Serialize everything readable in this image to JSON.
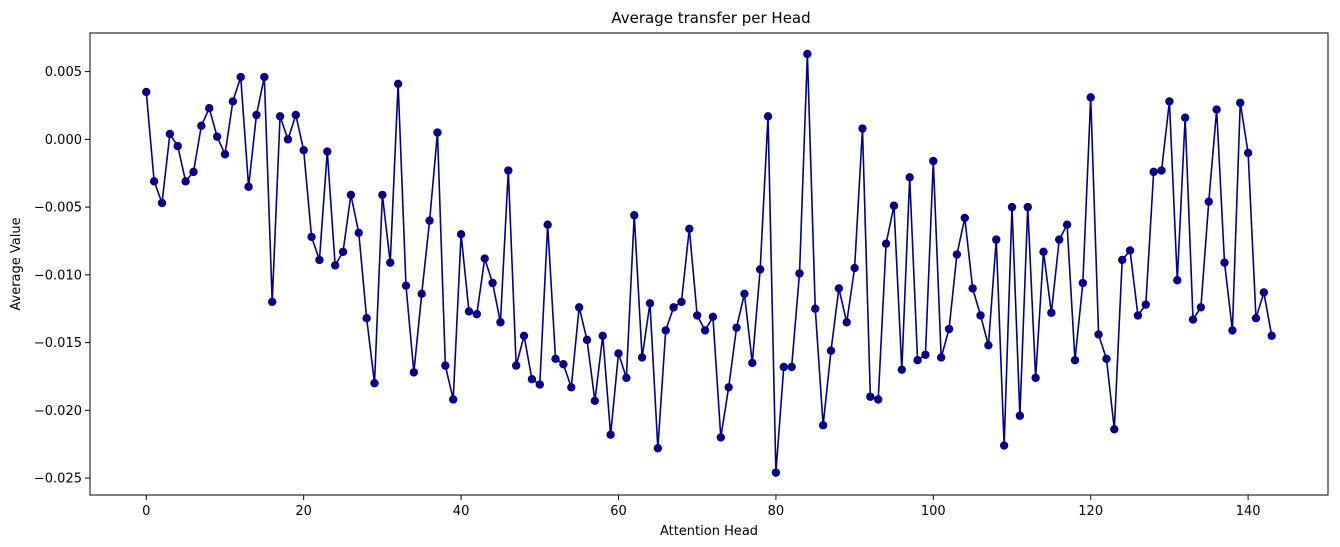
{
  "chart_data": {
    "type": "line",
    "title": "Average transfer per Head",
    "xlabel": "Attention Head",
    "ylabel": "Average Value",
    "xlim": [
      -7.15,
      150.15
    ],
    "ylim": [
      -0.02625,
      0.00785
    ],
    "xticks": [
      0,
      20,
      40,
      60,
      80,
      100,
      120,
      140
    ],
    "yticks": [
      0.005,
      0.0,
      -0.005,
      -0.01,
      -0.015,
      -0.02,
      -0.025
    ],
    "ytick_labels": [
      "0.005",
      "0.000",
      "−0.005",
      "−0.010",
      "−0.015",
      "−0.020",
      "−0.025"
    ],
    "grid": false,
    "color": "#00008b",
    "marker": "circle",
    "series": [
      {
        "values": [
          0.0035,
          -0.0031,
          -0.0047,
          0.0004,
          -0.0005,
          -0.0031,
          -0.0024,
          0.001,
          0.0023,
          0.0002,
          -0.0011,
          0.0028,
          0.0046,
          -0.0035,
          0.0018,
          0.0046,
          -0.012,
          0.0017,
          0.0,
          0.0018,
          -0.0008,
          -0.0072,
          -0.0089,
          -0.0009,
          -0.0093,
          -0.0083,
          -0.0041,
          -0.0069,
          -0.0132,
          -0.018,
          -0.0041,
          -0.0091,
          0.0041,
          -0.0108,
          -0.0172,
          -0.0114,
          -0.006,
          0.0005,
          -0.0167,
          -0.0192,
          -0.007,
          -0.0127,
          -0.0129,
          -0.0088,
          -0.0106,
          -0.0135,
          -0.0023,
          -0.0167,
          -0.0145,
          -0.0177,
          -0.0181,
          -0.0063,
          -0.0162,
          -0.0166,
          -0.0183,
          -0.0124,
          -0.0148,
          -0.0193,
          -0.0145,
          -0.0218,
          -0.0158,
          -0.0176,
          -0.0056,
          -0.0161,
          -0.0121,
          -0.0228,
          -0.0141,
          -0.0124,
          -0.012,
          -0.0066,
          -0.013,
          -0.0141,
          -0.0131,
          -0.022,
          -0.0183,
          -0.0139,
          -0.0114,
          -0.0165,
          -0.0096,
          0.0017,
          -0.0246,
          -0.0168,
          -0.0168,
          -0.0099,
          0.0063,
          -0.0125,
          -0.0211,
          -0.0156,
          -0.011,
          -0.0135,
          -0.0095,
          0.0008,
          -0.019,
          -0.0192,
          -0.0077,
          -0.0049,
          -0.017,
          -0.0028,
          -0.0163,
          -0.0159,
          -0.0016,
          -0.0161,
          -0.014,
          -0.0085,
          -0.0058,
          -0.011,
          -0.013,
          -0.0152,
          -0.0074,
          -0.0226,
          -0.005,
          -0.0204,
          -0.005,
          -0.0176,
          -0.0083,
          -0.0128,
          -0.0074,
          -0.0063,
          -0.0163,
          -0.0106,
          0.0031,
          -0.0144,
          -0.0162,
          -0.0214,
          -0.0089,
          -0.0082,
          -0.013,
          -0.0122,
          -0.0024,
          -0.0023,
          0.0028,
          -0.0104,
          0.0016,
          -0.0133,
          -0.0124,
          -0.0046,
          0.0022,
          -0.0091,
          -0.0141,
          0.0027,
          -0.001,
          -0.0132,
          -0.0113,
          -0.0145
        ]
      }
    ]
  }
}
